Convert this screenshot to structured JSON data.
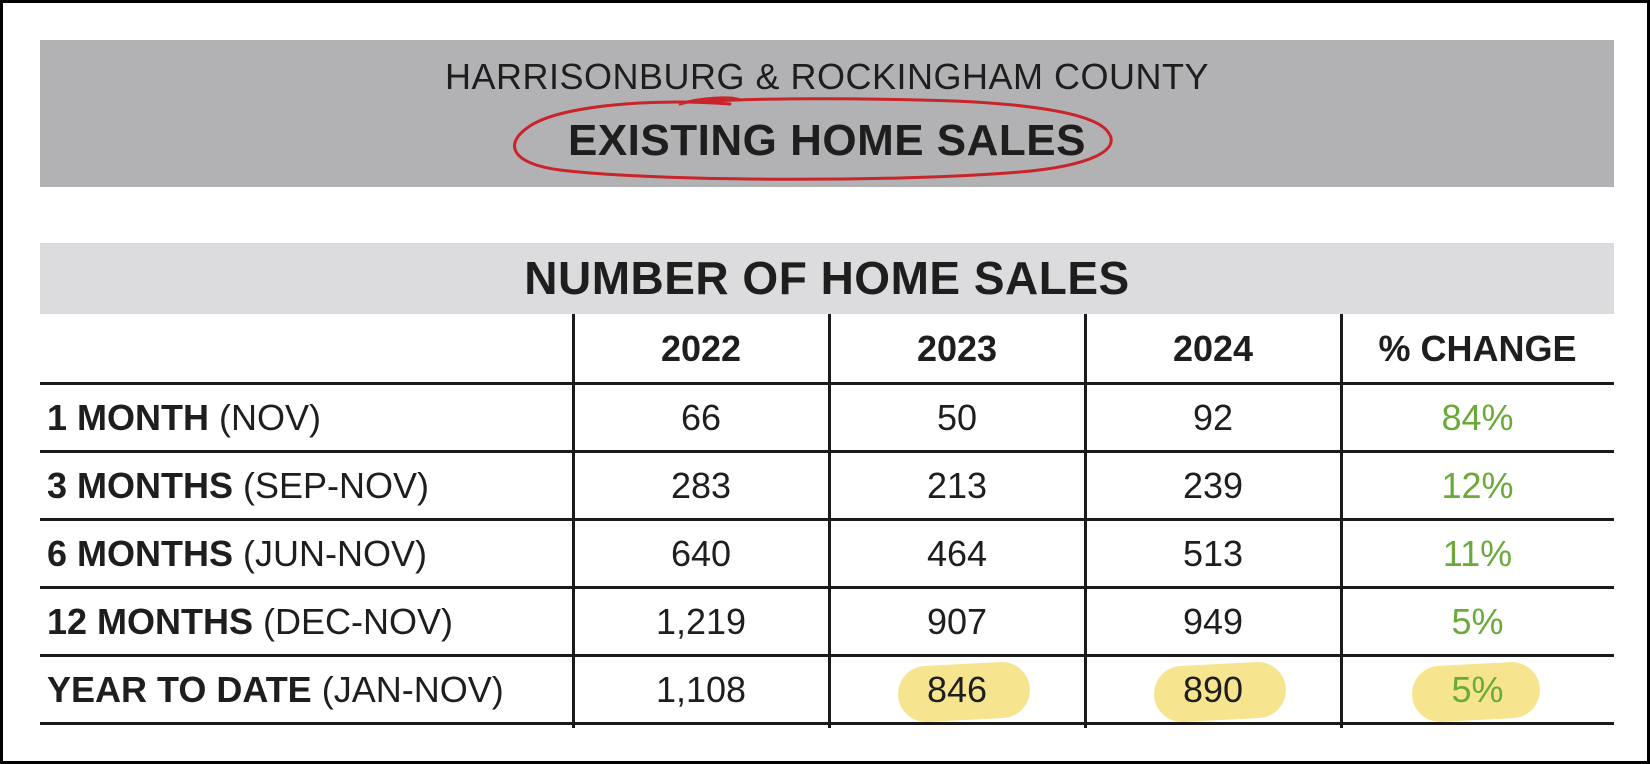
{
  "header": {
    "subtitle": "HARRISONBURG & ROCKINGHAM COUNTY",
    "title": "EXISTING HOME SALES"
  },
  "section": {
    "title": "NUMBER OF HOME SALES"
  },
  "table": {
    "columns": [
      "2022",
      "2023",
      "2024",
      "% CHANGE"
    ],
    "rows": [
      {
        "label_bold": "1 MONTH",
        "label_period": " (NOV)",
        "values": [
          "66",
          "50",
          "92"
        ],
        "change": "84%"
      },
      {
        "label_bold": "3 MONTHS",
        "label_period": " (SEP-NOV)",
        "values": [
          "283",
          "213",
          "239"
        ],
        "change": "12%"
      },
      {
        "label_bold": "6 MONTHS",
        "label_period": " (JUN-NOV)",
        "values": [
          "640",
          "464",
          "513"
        ],
        "change": "11%"
      },
      {
        "label_bold": "12 MONTHS",
        "label_period": " (DEC-NOV)",
        "values": [
          "1,219",
          "907",
          "949"
        ],
        "change": "5%"
      },
      {
        "label_bold": "YEAR TO DATE",
        "label_period": " (JAN-NOV)",
        "values": [
          "1,108",
          "846",
          "890"
        ],
        "change": "5%"
      }
    ]
  },
  "colors": {
    "header_band": "#b2b2b4",
    "section_band": "#dcdcde",
    "positive_change": "#6aaa3a",
    "circle_annotation": "#c8242a",
    "highlighter": "#f4e07a"
  }
}
